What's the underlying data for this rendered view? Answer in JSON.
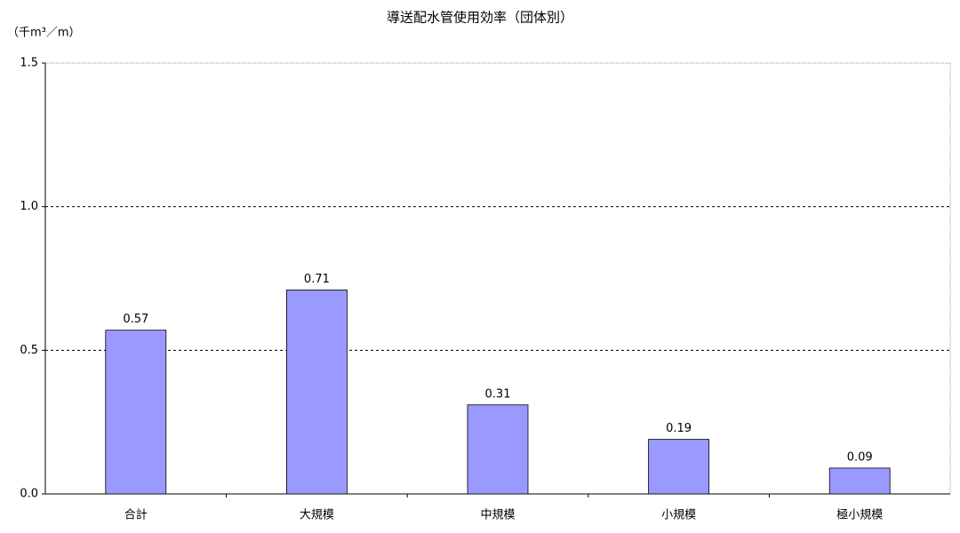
{
  "chart_data": {
    "type": "bar",
    "title": "導送配水管使用効率（団体別）",
    "y_label": "（千m³／m）",
    "categories": [
      "合計",
      "大規模",
      "中規模",
      "小規模",
      "極小規模"
    ],
    "values": [
      0.57,
      0.71,
      0.31,
      0.19,
      0.09
    ],
    "color": "#9999ff",
    "ylim": [
      0,
      1.5
    ],
    "yticks": [
      {
        "value": 0,
        "label": "0.0"
      },
      0.5,
      {
        "value": 1,
        "label": "1.0"
      },
      1.5
    ],
    "grid": true
  }
}
